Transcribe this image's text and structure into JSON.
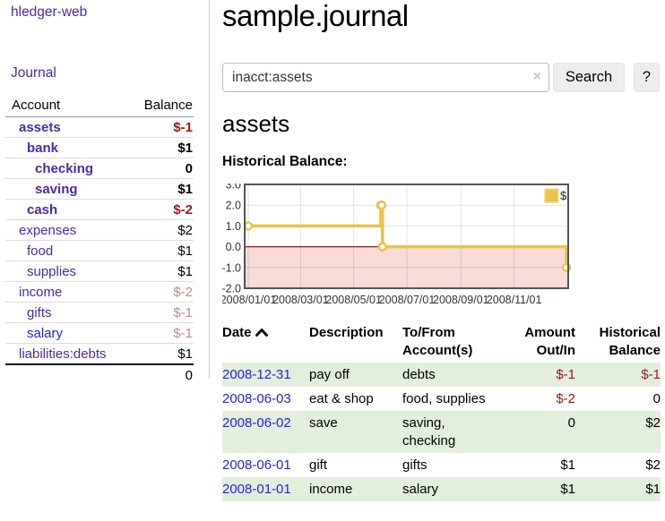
{
  "colors": {
    "purple": "#4b2aa3",
    "blue": "#2323d6",
    "neg_strong": "#9a1616",
    "neg_soft": "#c28b8b",
    "row_green": "#e3eedd",
    "gold": "#e9c349",
    "gold_light": "#f1da8e",
    "pink": "#f9dbd8",
    "zero_line": "#8b1a1a"
  },
  "sidebar": {
    "brand": "hledger-web",
    "nav_journal": "Journal",
    "accounts_table": {
      "col_account": "Account",
      "col_balance": "Balance"
    },
    "accounts": [
      {
        "name": "assets",
        "level": 1,
        "balance": "$-1",
        "bold": true,
        "tone": "neg"
      },
      {
        "name": "bank",
        "level": 2,
        "balance": "$1",
        "bold": true,
        "tone": ""
      },
      {
        "name": "checking",
        "level": 3,
        "balance": "0",
        "bold": true,
        "tone": ""
      },
      {
        "name": "saving",
        "level": 3,
        "balance": "$1",
        "bold": true,
        "tone": ""
      },
      {
        "name": "cash",
        "level": 2,
        "balance": "$-2",
        "bold": true,
        "tone": "neg"
      },
      {
        "name": "expenses",
        "level": 1,
        "balance": "$2",
        "bold": false,
        "tone": ""
      },
      {
        "name": "food",
        "level": 2,
        "balance": "$1",
        "bold": false,
        "tone": ""
      },
      {
        "name": "supplies",
        "level": 2,
        "balance": "$1",
        "bold": false,
        "tone": ""
      },
      {
        "name": "income",
        "level": 1,
        "balance": "$-2",
        "bold": false,
        "tone": "softneg"
      },
      {
        "name": "gifts",
        "level": 2,
        "balance": "$-1",
        "bold": false,
        "tone": "softneg"
      },
      {
        "name": "salary",
        "level": 2,
        "balance": "$-1",
        "bold": false,
        "tone": "softneg",
        "link": "blue"
      },
      {
        "name": "liabilities:debts",
        "level": 1,
        "balance": "$1",
        "bold": false,
        "tone": ""
      }
    ],
    "total": "0"
  },
  "main": {
    "title": "sample.journal",
    "search": {
      "value": "inacct:assets",
      "clear_label": "×",
      "search_button": "Search",
      "help_button": "?"
    },
    "account_heading": "assets",
    "chart_title": "Historical Balance:"
  },
  "chart_data": {
    "type": "line",
    "step": true,
    "title": "Historical Balance:",
    "legend_position": "top-right",
    "series": [
      {
        "name": "$",
        "points": [
          [
            "2008-01-01",
            1
          ],
          [
            "2008-06-01",
            2
          ],
          [
            "2008-06-02",
            2
          ],
          [
            "2008-06-03",
            0
          ],
          [
            "2008-12-31",
            -1
          ]
        ]
      }
    ],
    "ylim": [
      -2,
      3
    ],
    "y_ticks": [
      "3.0",
      "2.0",
      "1.0",
      "0.0",
      "-1.0",
      "-2.0"
    ],
    "x_ticks": [
      "2008/01/01",
      "2008/03/01",
      "2008/05/01",
      "2008/07/01",
      "2008/09/01",
      "2008/11/01"
    ],
    "grid": true,
    "negative_region_shaded": true
  },
  "register": {
    "columns": [
      {
        "line1": "Date",
        "line2": "",
        "align": "left",
        "sortable": true
      },
      {
        "line1": "Description",
        "line2": "",
        "align": "left"
      },
      {
        "line1": "To/From",
        "line2": "Account(s)",
        "align": "left"
      },
      {
        "line1": "Amount",
        "line2": "Out/In",
        "align": "right"
      },
      {
        "line1": "Historical",
        "line2": "Balance",
        "align": "right"
      }
    ],
    "rows": [
      {
        "date": "2008-12-31",
        "description": "pay off",
        "accounts": [
          "debts"
        ],
        "amount": "$-1",
        "amount_neg": true,
        "balance": "$-1",
        "balance_neg": true,
        "shaded": true
      },
      {
        "date": "2008-06-03",
        "description": "eat & shop",
        "accounts": [
          "food, supplies"
        ],
        "amount": "$-2",
        "amount_neg": true,
        "balance": "0",
        "balance_neg": false,
        "shaded": false
      },
      {
        "date": "2008-06-02",
        "description": "save",
        "accounts": [
          "saving,",
          "checking"
        ],
        "amount": "0",
        "amount_neg": false,
        "balance": "$2",
        "balance_neg": false,
        "shaded": true
      },
      {
        "date": "2008-06-01",
        "description": "gift",
        "accounts": [
          "gifts"
        ],
        "amount": "$1",
        "amount_neg": false,
        "balance": "$2",
        "balance_neg": false,
        "shaded": false
      },
      {
        "date": "2008-01-01",
        "description": "income",
        "accounts": [
          "salary"
        ],
        "amount": "$1",
        "amount_neg": false,
        "balance": "$1",
        "balance_neg": false,
        "shaded": true
      }
    ]
  }
}
